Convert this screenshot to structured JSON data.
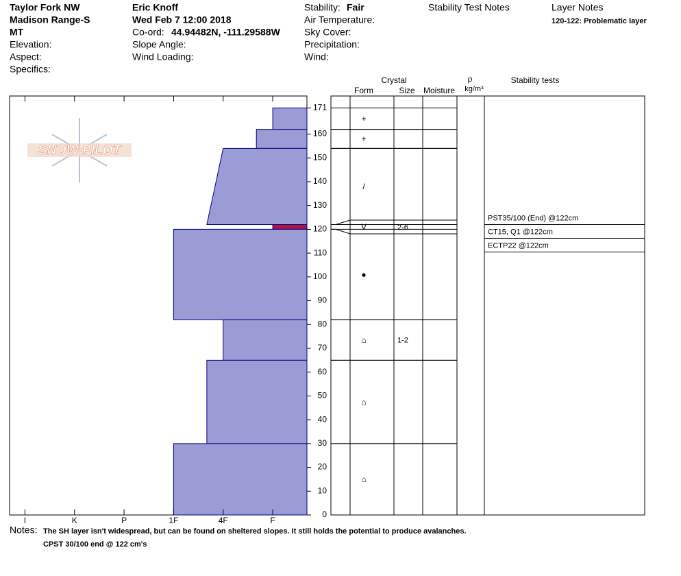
{
  "header": {
    "location": [
      "Taylor Fork NW",
      "Madison Range-S",
      "MT"
    ],
    "fields1": [
      "Elevation:",
      "Aspect:",
      "Specifics:"
    ],
    "observer": "Eric Knoff",
    "date": "Wed Feb 7 12:00 2018",
    "coord_label": "Co-ord:",
    "coord": "44.94482N, -111.29588W",
    "fields2": [
      "Slope Angle:",
      "Wind Loading:"
    ],
    "stability_label": "Stability:",
    "stability": "Fair",
    "fields3": [
      "Air Temperature:",
      "Sky Cover:",
      "Precipitation:",
      "Wind:"
    ],
    "test_notes_title": "Stability Test Notes",
    "layer_notes_title": "Layer Notes",
    "layer_notes": [
      "120-122: Problematic layer"
    ]
  },
  "logo": "SNOW PILOT",
  "chart_data": {
    "type": "snow_profile",
    "xlim": [
      6.31,
      0.31
    ],
    "xticks": [
      {
        "value": 6,
        "label": "I"
      },
      {
        "value": 5,
        "label": "K"
      },
      {
        "value": 4,
        "label": "P"
      },
      {
        "value": 3,
        "label": "1F"
      },
      {
        "value": 2,
        "label": "4F"
      },
      {
        "value": 1,
        "label": "F"
      }
    ],
    "ylim": [
      0,
      176
    ],
    "yticks": [
      0,
      10,
      20,
      30,
      40,
      50,
      60,
      70,
      80,
      90,
      100,
      110,
      120,
      130,
      140,
      150,
      160,
      171
    ],
    "layers": [
      {
        "top": 171,
        "bottom": 162,
        "hardness_top": 1,
        "hardness_bottom": 1,
        "form": "+",
        "color": "#9b9bd6"
      },
      {
        "top": 162,
        "bottom": 154,
        "hardness_top": 1.33,
        "hardness_bottom": 1.33,
        "form": "+",
        "color": "#9b9bd6"
      },
      {
        "top": 154,
        "bottom": 122,
        "hardness_top": 2,
        "hardness_bottom": 2.33,
        "form": "/",
        "color": "#9b9bd6"
      },
      {
        "top": 122,
        "bottom": 120,
        "hardness_top": 1,
        "hardness_bottom": 1,
        "form": "V",
        "size": "2-6",
        "color": "#b0143c"
      },
      {
        "top": 120,
        "bottom": 82,
        "hardness_top": 3,
        "hardness_bottom": 3,
        "form": "●",
        "color": "#9b9bd6"
      },
      {
        "top": 82,
        "bottom": 65,
        "hardness_top": 2,
        "hardness_bottom": 2,
        "form": "⌂",
        "size": "1-2",
        "color": "#9b9bd6"
      },
      {
        "top": 65,
        "bottom": 30,
        "hardness_top": 2.33,
        "hardness_bottom": 2.33,
        "form": "⌂",
        "color": "#9b9bd6"
      },
      {
        "top": 30,
        "bottom": 0,
        "hardness_top": 3,
        "hardness_bottom": 3,
        "form": "⌂",
        "color": "#9b9bd6"
      }
    ],
    "columns": {
      "crystal": "Crystal",
      "form": "Form",
      "size": "Size",
      "moisture": "Moisture",
      "density_symbol": "ρ",
      "density_unit": "kg/m³",
      "stability_tests": "Stability tests"
    },
    "tests_depth": 122,
    "stability_tests": [
      "PST35/100 (End) @122cm",
      "CT15, Q1 @122cm",
      "ECTP22 @122cm"
    ],
    "notes_label": "Notes:",
    "notes": [
      "The SH layer isn't widespread, but can be found on sheltered slopes. It still holds the potential to produce avalanches.",
      "CPST 30/100 end @ 122 cm's"
    ]
  }
}
